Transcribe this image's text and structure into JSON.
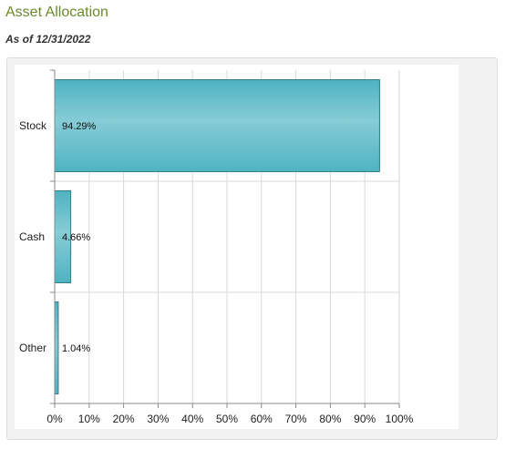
{
  "header": {
    "title": "Asset Allocation",
    "as_of": "As of 12/31/2022"
  },
  "chart_data": {
    "type": "bar",
    "orientation": "horizontal",
    "title": "",
    "xlabel": "",
    "ylabel": "",
    "categories": [
      "Stock",
      "Cash",
      "Other"
    ],
    "values": [
      94.29,
      4.66,
      1.04
    ],
    "value_labels": [
      "94.29%",
      "4.66%",
      "1.04%"
    ],
    "xlim": [
      0,
      100
    ],
    "x_ticks": [
      "0%",
      "10%",
      "20%",
      "30%",
      "40%",
      "50%",
      "60%",
      "70%",
      "80%",
      "90%",
      "100%"
    ],
    "grid": true,
    "legend": "none",
    "bar_color": "#4fb3c2",
    "bar_color_light": "#86ccd6",
    "bar_border_color": "#2f7f8a"
  }
}
